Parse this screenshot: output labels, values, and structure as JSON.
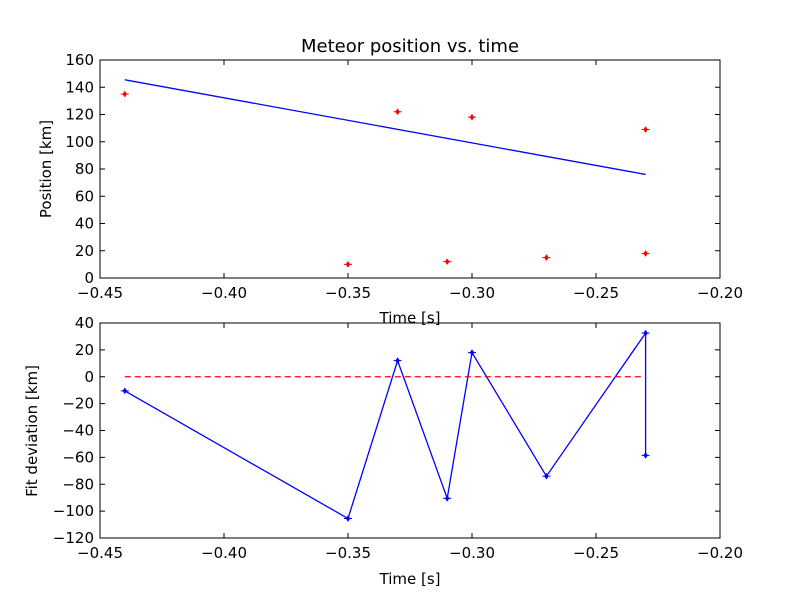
{
  "chart_data": [
    {
      "type": "scatter",
      "title": "Meteor position vs. time",
      "xlabel": "Time [s]",
      "ylabel": "Position [km]",
      "xlim": [
        -0.45,
        -0.2
      ],
      "ylim": [
        0,
        160
      ],
      "xticks": [
        "−0.45",
        "−0.40",
        "−0.35",
        "−0.30",
        "−0.25",
        "−0.20"
      ],
      "yticks": [
        "0",
        "20",
        "40",
        "60",
        "80",
        "100",
        "120",
        "140",
        "160"
      ],
      "xtick_values": [
        -0.45,
        -0.4,
        -0.35,
        -0.3,
        -0.25,
        -0.2
      ],
      "ytick_values": [
        0,
        20,
        40,
        60,
        80,
        100,
        120,
        140,
        160
      ],
      "grid": false,
      "series": [
        {
          "kind": "points",
          "color": "#ff0000",
          "points": [
            {
              "x": -0.44,
              "y": 135
            },
            {
              "x": -0.35,
              "y": 10
            },
            {
              "x": -0.33,
              "y": 122
            },
            {
              "x": -0.31,
              "y": 12
            },
            {
              "x": -0.3,
              "y": 118
            },
            {
              "x": -0.27,
              "y": 15
            },
            {
              "x": -0.23,
              "y": 109
            },
            {
              "x": -0.23,
              "y": 18
            }
          ]
        },
        {
          "kind": "line",
          "color": "#0000ff",
          "points": [
            {
              "x": -0.44,
              "y": 145.5
            },
            {
              "x": -0.23,
              "y": 76
            }
          ]
        }
      ]
    },
    {
      "type": "line",
      "title": "",
      "xlabel": "Time [s]",
      "ylabel": "Fit deviation [km]",
      "xlim": [
        -0.45,
        -0.2
      ],
      "ylim": [
        -120,
        40
      ],
      "xticks": [
        "−0.45",
        "−0.40",
        "−0.35",
        "−0.30",
        "−0.25",
        "−0.20"
      ],
      "yticks": [
        "−120",
        "−100",
        "−80",
        "−60",
        "−40",
        "−20",
        "0",
        "20",
        "40"
      ],
      "xtick_values": [
        -0.45,
        -0.4,
        -0.35,
        -0.3,
        -0.25,
        -0.2
      ],
      "ytick_values": [
        -120,
        -100,
        -80,
        -60,
        -40,
        -20,
        0,
        20,
        40
      ],
      "grid": false,
      "series": [
        {
          "kind": "line-markers",
          "color": "#0000ff",
          "points": [
            {
              "x": -0.44,
              "y": -10.5
            },
            {
              "x": -0.35,
              "y": -105.5
            },
            {
              "x": -0.33,
              "y": 12
            },
            {
              "x": -0.31,
              "y": -90.5
            },
            {
              "x": -0.3,
              "y": 18
            },
            {
              "x": -0.27,
              "y": -74
            },
            {
              "x": -0.23,
              "y": 32.5
            },
            {
              "x": -0.23,
              "y": -58.5
            }
          ]
        },
        {
          "kind": "dashed",
          "color": "#ff0000",
          "points": [
            {
              "x": -0.44,
              "y": 0
            },
            {
              "x": -0.23,
              "y": 0
            }
          ]
        }
      ]
    }
  ]
}
